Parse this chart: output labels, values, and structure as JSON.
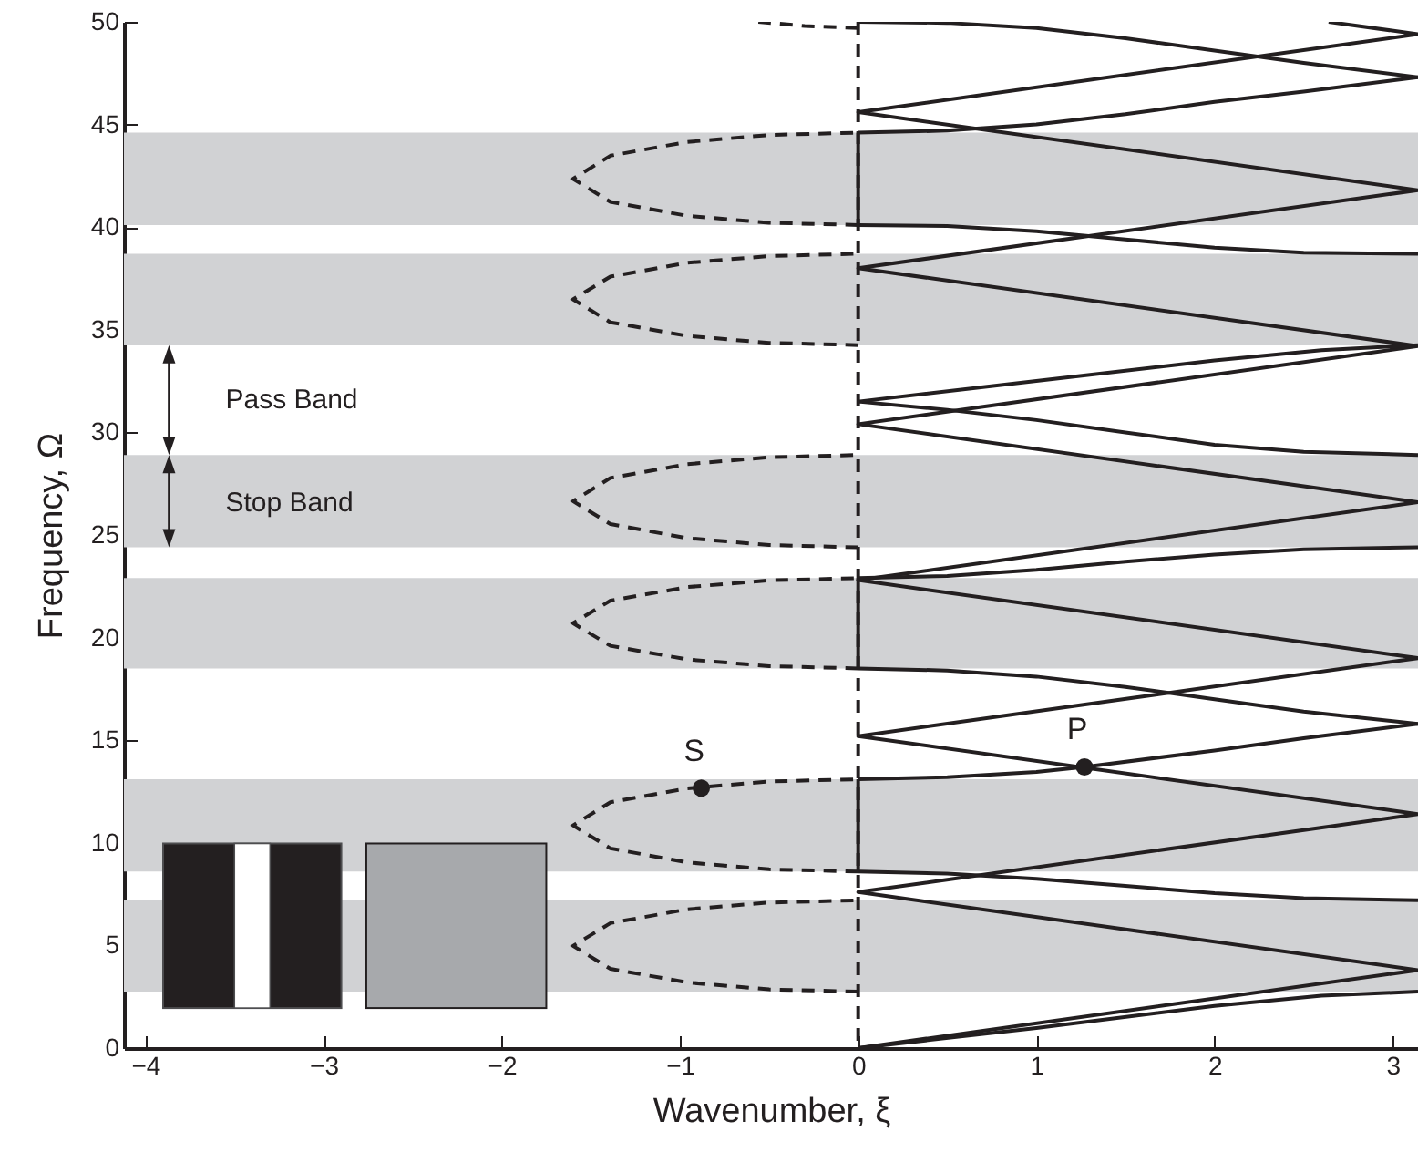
{
  "chart_data": {
    "type": "line",
    "xlabel": "Wavenumber, ξ",
    "ylabel": "Frequency, Ω",
    "xlim": [
      -4.12,
      3.1416
    ],
    "ylim": [
      0,
      50
    ],
    "xticks": [
      -4,
      -3,
      -2,
      -1,
      0,
      1,
      2,
      3
    ],
    "yticks": [
      0,
      5,
      10,
      15,
      20,
      25,
      30,
      35,
      40,
      45,
      50
    ],
    "bands": [
      {
        "axis": "y",
        "from": 2.75,
        "to": 7.2,
        "color": "#d1d2d4"
      },
      {
        "axis": "y",
        "from": 8.6,
        "to": 13.1,
        "color": "#d1d2d4"
      },
      {
        "axis": "y",
        "from": 18.5,
        "to": 22.9,
        "color": "#d1d2d4"
      },
      {
        "axis": "y",
        "from": 24.4,
        "to": 28.9,
        "color": "#d1d2d4"
      },
      {
        "axis": "y",
        "from": 34.25,
        "to": 38.7,
        "color": "#d1d2d4"
      },
      {
        "axis": "y",
        "from": 40.1,
        "to": 44.6,
        "color": "#d1d2d4"
      }
    ],
    "ref_lines": [
      {
        "axis": "x",
        "value": 0,
        "line_style": "dashed",
        "color": "#231f20"
      }
    ],
    "annotations": [
      "Pass Band",
      "Stop Band"
    ],
    "series": [
      {
        "color": "#231f20",
        "line_style": "solid",
        "x": [
          0,
          3.1416,
          0,
          3.1416,
          0,
          3.1416,
          0,
          3.1416,
          0,
          3.1416,
          0,
          3.1416,
          0,
          3.1416,
          2.64
        ],
        "values": [
          0,
          3.8,
          7.6,
          11.4,
          15.2,
          19,
          22.8,
          26.6,
          30.4,
          34.2,
          38,
          41.8,
          45.6,
          49.4,
          50
        ]
      },
      {
        "color": "#231f20",
        "line_style": "solid",
        "x": [
          0,
          1,
          2,
          2.6,
          3.1416
        ],
        "values": [
          0,
          0.98,
          2.05,
          2.55,
          2.75
        ]
      },
      {
        "color": "#231f20",
        "line_style": "solid",
        "x": [
          0,
          0.5,
          1,
          1.5,
          2,
          2.5,
          3.1416
        ],
        "values": [
          8.6,
          8.5,
          8.25,
          7.9,
          7.55,
          7.3,
          7.2
        ]
      },
      {
        "color": "#231f20",
        "line_style": "solid",
        "x": [
          0,
          0.5,
          1,
          1.27,
          2,
          2.5,
          3.1416
        ],
        "values": [
          13.1,
          13.2,
          13.45,
          13.7,
          14.5,
          15.1,
          15.8
        ]
      },
      {
        "color": "#231f20",
        "line_style": "solid",
        "x": [
          0,
          0.5,
          1,
          1.5,
          2,
          2.5,
          3.1416
        ],
        "values": [
          18.5,
          18.4,
          18.1,
          17.6,
          17,
          16.4,
          15.8
        ]
      },
      {
        "color": "#231f20",
        "line_style": "solid",
        "x": [
          0,
          0.5,
          1,
          1.5,
          2,
          2.5,
          3.1416
        ],
        "values": [
          22.9,
          23,
          23.3,
          23.7,
          24.05,
          24.3,
          24.4
        ]
      },
      {
        "color": "#231f20",
        "line_style": "solid",
        "x": [
          0,
          0.5,
          1,
          1.5,
          2,
          2.5,
          3.1416
        ],
        "values": [
          31.5,
          31.1,
          30.6,
          30,
          29.4,
          29.05,
          28.9
        ]
      },
      {
        "color": "#231f20",
        "line_style": "solid",
        "x": [
          0,
          1,
          2,
          2.6,
          3.1416
        ],
        "values": [
          31.5,
          32.5,
          33.5,
          34,
          34.25
        ]
      },
      {
        "color": "#231f20",
        "line_style": "solid",
        "x": [
          0,
          0.5,
          1,
          1.5,
          2,
          2.5,
          3.1416
        ],
        "values": [
          40.1,
          40.05,
          39.8,
          39.4,
          39,
          38.75,
          38.7
        ]
      },
      {
        "color": "#231f20",
        "line_style": "solid",
        "x": [
          0,
          0.5,
          1,
          1.5,
          2,
          2.5,
          3.1416
        ],
        "values": [
          44.6,
          44.7,
          45,
          45.5,
          46.1,
          46.6,
          47.3
        ]
      },
      {
        "color": "#231f20",
        "line_style": "solid",
        "x": [
          0,
          0.5,
          1,
          1.5,
          2,
          2.5,
          3.1416
        ],
        "values": [
          50,
          49.95,
          49.7,
          49.2,
          48.6,
          48,
          47.3
        ]
      },
      {
        "color": "#231f20",
        "line_style": "solid",
        "x": [
          0,
          0
        ],
        "values": [
          8.6,
          13.1
        ]
      },
      {
        "color": "#231f20",
        "line_style": "solid",
        "x": [
          0,
          0
        ],
        "values": [
          18.5,
          22.9
        ]
      },
      {
        "color": "#231f20",
        "line_style": "solid",
        "x": [
          0,
          0
        ],
        "values": [
          40.1,
          44.6
        ]
      },
      {
        "color": "#231f20",
        "line_style": "dashed",
        "x": [
          0,
          -0.5,
          -0.96,
          -1.39,
          -1.6,
          -1.39,
          -0.96,
          -0.5,
          0
        ],
        "values": [
          2.75,
          2.86,
          3.2,
          3.86,
          4.98,
          6.09,
          6.76,
          7.09,
          7.2
        ]
      },
      {
        "color": "#231f20",
        "line_style": "dashed",
        "x": [
          0,
          -0.5,
          -0.96,
          -1.39,
          -1.6,
          -1.39,
          -0.96,
          -0.5,
          0
        ],
        "values": [
          8.6,
          8.71,
          9.05,
          9.73,
          10.85,
          11.98,
          12.65,
          12.99,
          13.1
        ]
      },
      {
        "color": "#231f20",
        "line_style": "dashed",
        "x": [
          0,
          -0.5,
          -0.96,
          -1.39,
          -1.6,
          -1.39,
          -0.96,
          -0.5,
          0
        ],
        "values": [
          18.5,
          18.61,
          18.94,
          19.6,
          20.7,
          21.8,
          22.46,
          22.79,
          22.9
        ]
      },
      {
        "color": "#231f20",
        "line_style": "dashed",
        "x": [
          0,
          -0.5,
          -0.96,
          -1.39,
          -1.6,
          -1.39,
          -0.96,
          -0.5,
          0
        ],
        "values": [
          24.4,
          24.51,
          24.85,
          25.53,
          26.65,
          27.78,
          28.45,
          28.79,
          28.9
        ]
      },
      {
        "color": "#231f20",
        "line_style": "dashed",
        "x": [
          0,
          -0.5,
          -0.96,
          -1.39,
          -1.6,
          -1.39,
          -0.96,
          -0.5,
          0
        ],
        "values": [
          34.25,
          34.36,
          34.7,
          35.36,
          36.48,
          37.59,
          38.26,
          38.59,
          38.7
        ]
      },
      {
        "color": "#231f20",
        "line_style": "dashed",
        "x": [
          0,
          -0.5,
          -0.96,
          -1.39,
          -1.6,
          -1.39,
          -0.96,
          -0.5,
          0
        ],
        "values": [
          40.1,
          40.21,
          40.55,
          41.23,
          42.35,
          43.48,
          44.15,
          44.49,
          44.6
        ]
      },
      {
        "color": "#231f20",
        "line_style": "dashed",
        "x": [
          0,
          -0.3,
          -0.56
        ],
        "values": [
          49.7,
          49.8,
          50
        ]
      },
      {
        "type": "scatter",
        "name": "S",
        "marker": "circle",
        "color": "#231f20",
        "x": [
          -0.88
        ],
        "values": [
          12.67
        ]
      },
      {
        "type": "scatter",
        "name": "P",
        "marker": "circle",
        "color": "#231f20",
        "x": [
          1.27
        ],
        "values": [
          13.7
        ]
      }
    ]
  }
}
